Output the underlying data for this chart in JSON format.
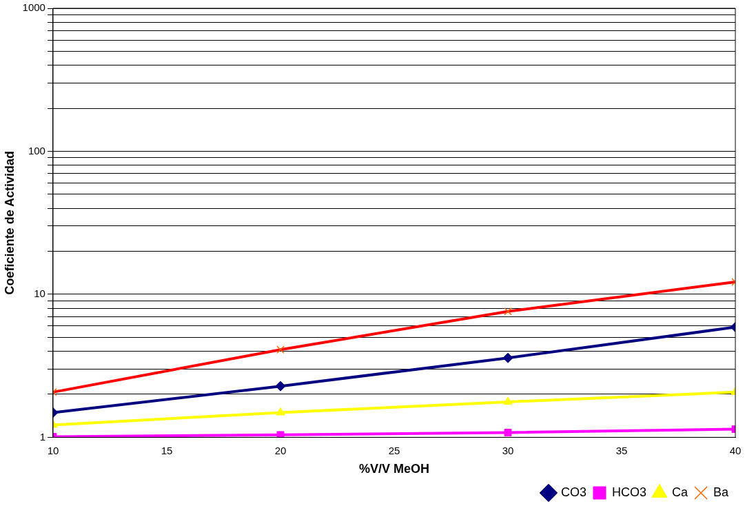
{
  "chart_data": {
    "type": "line",
    "xlabel": "%V/V MeOH",
    "ylabel": "Coeficiente de Actividad",
    "x": [
      10,
      20,
      30,
      40
    ],
    "series": [
      {
        "name": "CO3",
        "color": "#000080",
        "marker": "diamond",
        "values": [
          1.49,
          2.28,
          3.59,
          5.9
        ]
      },
      {
        "name": "HCO3",
        "color": "#ff00ff",
        "marker": "square",
        "values": [
          1.01,
          1.04,
          1.08,
          1.14
        ]
      },
      {
        "name": "Ca",
        "color": "#ffff00",
        "marker": "triangle",
        "values": [
          1.22,
          1.49,
          1.77,
          2.07
        ]
      },
      {
        "name": "Ba",
        "color": "#ff0000",
        "marker": "cross",
        "values": [
          2.07,
          4.1,
          7.6,
          12.2
        ]
      }
    ],
    "log": "y",
    "xlim": [
      10,
      40
    ],
    "xticks": [
      10,
      15,
      20,
      25,
      30,
      35,
      40
    ],
    "ylim": [
      1,
      1000
    ],
    "yticks": [
      1,
      {
        "value": 2,
        "label": null
      },
      {
        "value": 3,
        "label": null
      },
      {
        "value": 4,
        "label": null
      },
      {
        "value": 5,
        "label": null
      },
      {
        "value": 6,
        "label": null
      },
      {
        "value": 7,
        "label": null
      },
      {
        "value": 8,
        "label": null
      },
      {
        "value": 9,
        "label": null
      },
      10,
      {
        "value": 20,
        "label": null
      },
      {
        "value": 30,
        "label": null
      },
      {
        "value": 40,
        "label": null
      },
      {
        "value": 50,
        "label": null
      },
      {
        "value": 60,
        "label": null
      },
      {
        "value": 70,
        "label": null
      },
      {
        "value": 80,
        "label": null
      },
      {
        "value": 90,
        "label": null
      },
      100,
      {
        "value": 200,
        "label": null
      },
      {
        "value": 300,
        "label": null
      },
      {
        "value": 400,
        "label": null
      },
      {
        "value": 500,
        "label": null
      },
      {
        "value": 600,
        "label": null
      },
      {
        "value": 700,
        "label": null
      },
      {
        "value": 800,
        "label": null
      },
      {
        "value": 900,
        "label": null
      },
      1000
    ],
    "grid": "y",
    "legend": "bottom right",
    "line_style": "solid"
  }
}
